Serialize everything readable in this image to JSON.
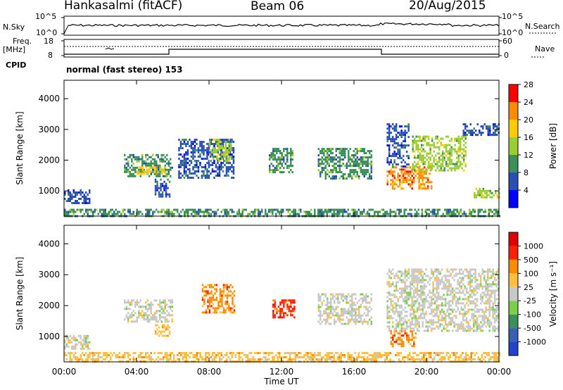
{
  "header": {
    "station": "Hankasalmi (fitACF)",
    "beam": "Beam 06",
    "date": "20/Aug/2015"
  },
  "top_panels": {
    "nsky_label": "N.Sky",
    "nsky_ticks": [
      "10^5",
      "10^0"
    ],
    "nsearch_label": "N.Search",
    "nsearch_ticks": [
      "10^5",
      "10^0"
    ],
    "freq_label_1": "Freq.",
    "freq_label_2": "[MHz]",
    "freq_ticks": [
      "18",
      "8"
    ],
    "nave_label": "Nave",
    "nave_ticks": [
      "60",
      "0"
    ],
    "cpid_label": "CPID",
    "cpid_text": "normal (fast stereo) 153"
  },
  "chart_data": [
    {
      "type": "heatmap",
      "title": "",
      "xlabel": "Time UT",
      "ylabel": "Slant Range [km]",
      "x_ticks": [
        "00:00",
        "04:00",
        "08:00",
        "12:00",
        "16:00",
        "20:00",
        "00:00"
      ],
      "y_ticks": [
        "1000",
        "2000",
        "3000",
        "4000"
      ],
      "xlim": [
        0,
        24
      ],
      "ylim": [
        180,
        4600
      ],
      "colorbar": {
        "label": "Power [dB]",
        "ticks": [
          "4",
          "8",
          "12",
          "16",
          "20",
          "24",
          "28"
        ],
        "colors": [
          "#0000ff",
          "#2a4fb4",
          "#3c8f5a",
          "#9acd32",
          "#ffcc00",
          "#ff8c00",
          "#ff0000"
        ]
      },
      "regions": [
        {
          "t0": 0.0,
          "t1": 24.0,
          "r0": 200,
          "r1": 420,
          "level": 2
        },
        {
          "t0": 0.0,
          "t1": 1.4,
          "r0": 600,
          "r1": 1050,
          "level": 1
        },
        {
          "t0": 3.3,
          "t1": 6.0,
          "r0": 1500,
          "r1": 2200,
          "level": 2
        },
        {
          "t0": 4.0,
          "t1": 5.6,
          "r0": 1550,
          "r1": 1800,
          "level": 4
        },
        {
          "t0": 5.0,
          "t1": 5.8,
          "r0": 800,
          "r1": 1400,
          "level": 1
        },
        {
          "t0": 6.3,
          "t1": 9.4,
          "r0": 1400,
          "r1": 2700,
          "level": 1
        },
        {
          "t0": 8.0,
          "t1": 9.2,
          "r0": 2000,
          "r1": 2700,
          "level": 3
        },
        {
          "t0": 11.3,
          "t1": 12.6,
          "r0": 1600,
          "r1": 2400,
          "level": 2
        },
        {
          "t0": 14.0,
          "t1": 17.0,
          "r0": 1400,
          "r1": 2400,
          "level": 2
        },
        {
          "t0": 17.8,
          "t1": 20.3,
          "r0": 1100,
          "r1": 1800,
          "level": 5
        },
        {
          "t0": 17.8,
          "t1": 19.0,
          "r0": 1800,
          "r1": 3200,
          "level": 1
        },
        {
          "t0": 19.2,
          "t1": 22.2,
          "r0": 1700,
          "r1": 2800,
          "level": 3
        },
        {
          "t0": 22.0,
          "t1": 24.0,
          "r0": 2800,
          "r1": 3200,
          "level": 1
        },
        {
          "t0": 22.6,
          "t1": 24.0,
          "r0": 800,
          "r1": 1100,
          "level": 3
        }
      ]
    },
    {
      "type": "heatmap",
      "title": "",
      "xlabel": "Time UT",
      "ylabel": "Slant Range [km]",
      "x_ticks": [
        "00:00",
        "04:00",
        "08:00",
        "12:00",
        "16:00",
        "20:00",
        "00:00"
      ],
      "y_ticks": [
        "1000",
        "2000",
        "3000",
        "4000"
      ],
      "xlim": [
        0,
        24
      ],
      "ylim": [
        180,
        4600
      ],
      "colorbar": {
        "label": "Velocity [m s⁻¹]",
        "ticks": [
          "1000",
          "500",
          "100",
          "25",
          "-25",
          "-100",
          "-500",
          "-1000"
        ],
        "colors": [
          "#2244cc",
          "#3a5fb0",
          "#3c8f5a",
          "#7ccd4a",
          "#c8c8c8",
          "#ffc040",
          "#ff8c00",
          "#ff2000",
          "#e00000"
        ]
      },
      "regions": [
        {
          "t0": 0.0,
          "t1": 24.0,
          "r0": 200,
          "r1": 500,
          "level": 5
        },
        {
          "t0": 0.0,
          "t1": 1.4,
          "r0": 600,
          "r1": 1050,
          "level": 4
        },
        {
          "t0": 3.3,
          "t1": 6.0,
          "r0": 1500,
          "r1": 2200,
          "level": 4
        },
        {
          "t0": 5.0,
          "t1": 5.8,
          "r0": 1000,
          "r1": 1400,
          "level": 5
        },
        {
          "t0": 7.6,
          "t1": 9.4,
          "r0": 1800,
          "r1": 2700,
          "level": 6
        },
        {
          "t0": 11.5,
          "t1": 12.7,
          "r0": 1600,
          "r1": 2200,
          "level": 7
        },
        {
          "t0": 14.0,
          "t1": 17.0,
          "r0": 1400,
          "r1": 2400,
          "level": 4
        },
        {
          "t0": 17.8,
          "t1": 24.0,
          "r0": 1200,
          "r1": 3200,
          "level": 4
        },
        {
          "t0": 18.0,
          "t1": 19.4,
          "r0": 700,
          "r1": 1200,
          "level": 6
        }
      ]
    }
  ]
}
